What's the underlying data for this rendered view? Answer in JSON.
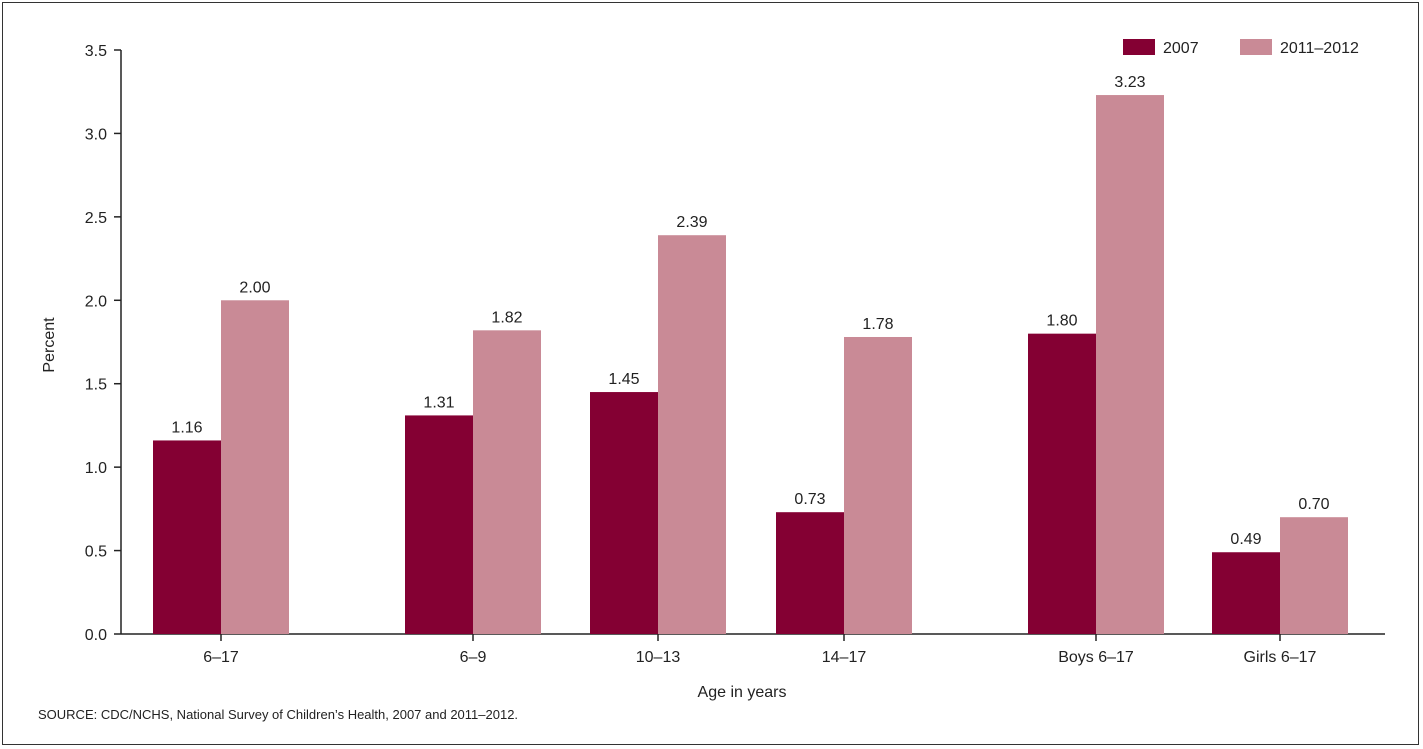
{
  "source": "SOURCE: CDC/NCHS, National Survey of Children’s Health, 2007 and 2011–2012.",
  "chart_data": {
    "type": "bar",
    "title": "",
    "xlabel": "Age in years",
    "ylabel": "Percent",
    "ylim": [
      0,
      3.5
    ],
    "yticks": [
      "0.0",
      "0.5",
      "1.0",
      "1.5",
      "2.0",
      "2.5",
      "3.0",
      "3.5"
    ],
    "categories": [
      "6–17",
      "6–9",
      "10–13",
      "14–17",
      "Boys 6–17",
      "Girls 6–17"
    ],
    "grid": false,
    "legend_position": "top-right",
    "series": [
      {
        "name": "2007",
        "color": "#840033",
        "values": [
          1.16,
          1.31,
          1.45,
          0.73,
          1.8,
          0.49
        ],
        "labels": [
          "1.16",
          "1.31",
          "1.45",
          "0.73",
          "1.80",
          "0.49"
        ]
      },
      {
        "name": "2011–2012",
        "color": "#c98a96",
        "values": [
          2.0,
          1.82,
          2.39,
          1.78,
          3.23,
          0.7
        ],
        "labels": [
          "2.00",
          "1.82",
          "2.39",
          "1.78",
          "3.23",
          "0.70"
        ]
      }
    ]
  }
}
